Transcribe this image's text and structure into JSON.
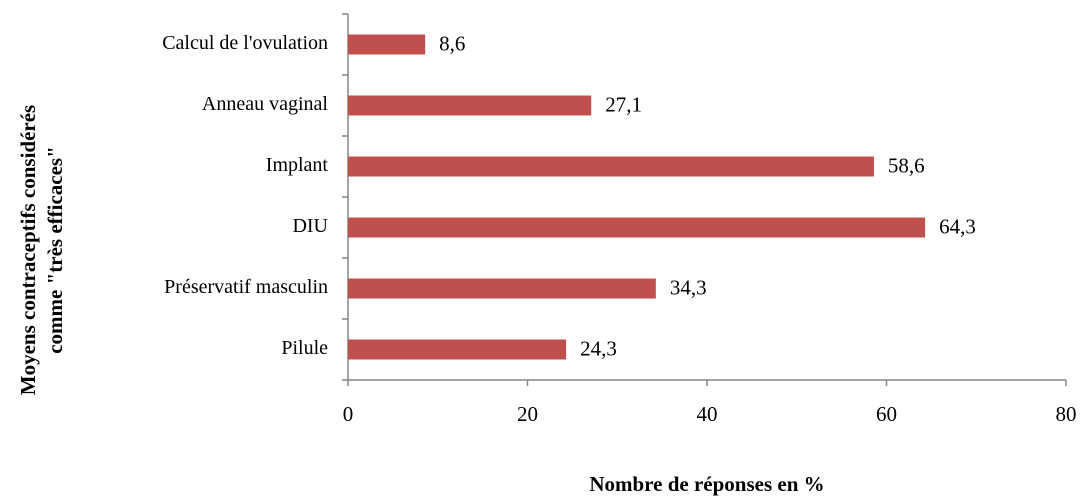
{
  "chart_data": {
    "type": "bar",
    "orientation": "horizontal",
    "categories": [
      "Calcul de l'ovulation",
      "Anneau vaginal",
      "Implant",
      "DIU",
      "Préservatif masculin",
      "Pilule"
    ],
    "values": [
      8.6,
      27.1,
      58.6,
      64.3,
      34.3,
      24.3
    ],
    "value_labels": [
      "8,6",
      "27,1",
      "58,6",
      "64,3",
      "34,3",
      "24,3"
    ],
    "color": "#c0504d",
    "xlim": [
      0,
      80
    ],
    "xticks": [
      0,
      20,
      40,
      60,
      80
    ],
    "xlabel": "Nombre de réponses en %",
    "ylabel": [
      "Moyens contraceptifs considérés",
      "comme \"très efficaces\""
    ],
    "grid": false
  }
}
